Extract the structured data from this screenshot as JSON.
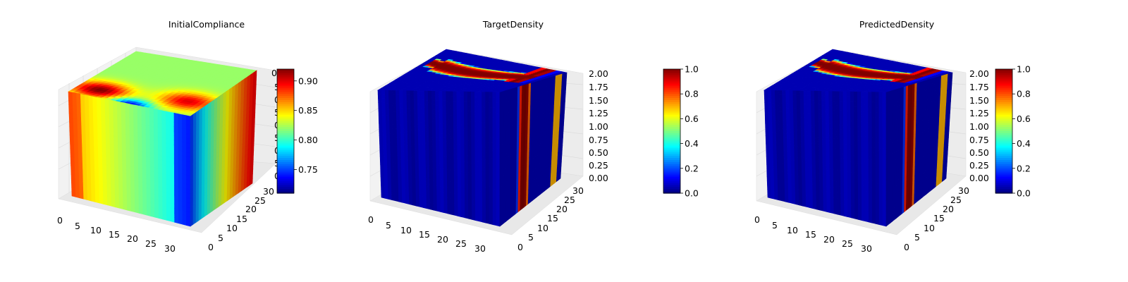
{
  "colors": {
    "colormap": "jet",
    "pane_fill": "#f2f2f2",
    "grid": "#e3e3e3",
    "axis_line": "#000000"
  },
  "chart_data": [
    {
      "type": "voxel3d",
      "title": "InitialCompliance",
      "colormap": "jet",
      "x_ticks": [
        "0",
        "5",
        "10",
        "15",
        "20",
        "25",
        "30"
      ],
      "y_ticks": [
        "0",
        "5",
        "10",
        "15",
        "20",
        "25",
        "30"
      ],
      "z_ticks": [
        "0",
        "5",
        "0",
        "5",
        "0",
        "5",
        "0",
        "5",
        "0"
      ],
      "colorbar": {
        "min": 0.71,
        "max": 0.92,
        "ticks": [
          "0.75",
          "0.80",
          "0.85",
          "0.90"
        ],
        "tick_values": [
          0.75,
          0.8,
          0.85,
          0.9
        ]
      },
      "top_face": {
        "base": 0.82,
        "hot_spots": [
          [
            0.18,
            0.15,
            0.92
          ],
          [
            0.85,
            0.25,
            0.9
          ]
        ],
        "cool_spots": [
          [
            0.5,
            0.0,
            0.73
          ]
        ]
      },
      "front_face": {
        "start": 0.86,
        "end": 0.78
      },
      "side_face": {
        "start": 0.74,
        "end": 0.9
      }
    },
    {
      "type": "voxel3d",
      "title": "TargetDensity",
      "colormap": "jet",
      "x_ticks": [
        "0",
        "5",
        "10",
        "15",
        "20",
        "25",
        "30"
      ],
      "y_ticks": [
        "0",
        "5",
        "10",
        "15",
        "20",
        "25",
        "30"
      ],
      "z_ticks": [
        "0.00",
        "0.25",
        "0.50",
        "0.75",
        "1.00",
        "1.25",
        "1.50",
        "1.75",
        "2.00"
      ],
      "colorbar": {
        "min": 0.0,
        "max": 1.0,
        "ticks": [
          "0.0",
          "0.2",
          "0.4",
          "0.6",
          "0.8",
          "1.0"
        ],
        "tick_values": [
          0.0,
          0.2,
          0.4,
          0.6,
          0.8,
          1.0
        ]
      },
      "band_value": 1.0,
      "background_value": 0.05
    },
    {
      "type": "voxel3d",
      "title": "PredictedDensity",
      "colormap": "jet",
      "x_ticks": [
        "0",
        "5",
        "10",
        "15",
        "20",
        "25",
        "30"
      ],
      "y_ticks": [
        "0",
        "5",
        "10",
        "15",
        "20",
        "25",
        "30"
      ],
      "z_ticks": [
        "0.00",
        "0.25",
        "0.50",
        "0.75",
        "1.00",
        "1.25",
        "1.50",
        "1.75",
        "2.00"
      ],
      "colorbar": {
        "min": 0.0,
        "max": 1.0,
        "ticks": [
          "0.0",
          "0.2",
          "0.4",
          "0.6",
          "0.8",
          "1.0"
        ],
        "tick_values": [
          0.0,
          0.2,
          0.4,
          0.6,
          0.8,
          1.0
        ]
      },
      "band_value": 1.0,
      "background_value": 0.05
    }
  ]
}
